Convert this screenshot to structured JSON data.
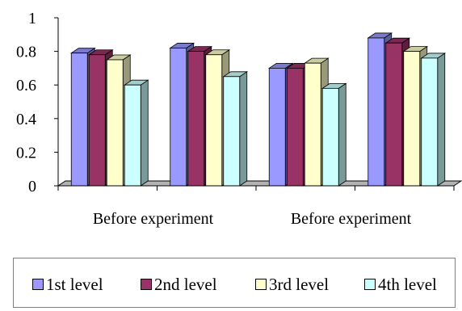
{
  "chart_data": {
    "type": "bar",
    "title": "",
    "xlabel": "",
    "ylabel": "",
    "ylim": [
      0,
      1
    ],
    "yticks": [
      "0",
      "0.2",
      "0.4",
      "0.6",
      "0.8",
      "1"
    ],
    "categories": [
      "Before experiment",
      "",
      "Before experiment",
      ""
    ],
    "series": [
      {
        "name": "1st level",
        "color": "#9999ff",
        "values": [
          0.79,
          0.82,
          0.7,
          0.88
        ]
      },
      {
        "name": "2nd level",
        "color": "#993366",
        "values": [
          0.78,
          0.8,
          0.7,
          0.85
        ]
      },
      {
        "name": "3rd level",
        "color": "#ffffcc",
        "values": [
          0.75,
          0.78,
          0.73,
          0.8
        ]
      },
      {
        "name": "4th level",
        "color": "#ccffff",
        "values": [
          0.6,
          0.65,
          0.58,
          0.76
        ]
      }
    ],
    "grid": false,
    "legend": "bottom"
  }
}
